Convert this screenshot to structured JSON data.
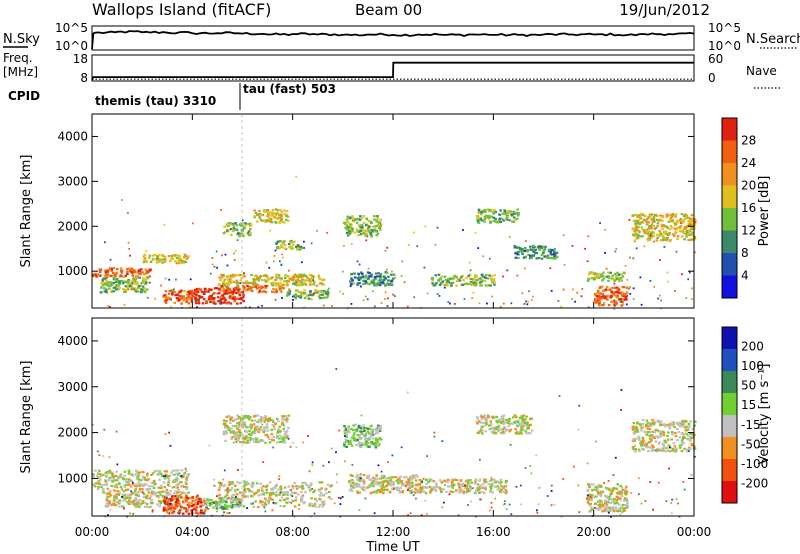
{
  "header": {
    "title": "Wallops Island (fitACF)",
    "beam": "Beam 00",
    "date": "19/Jun/2012"
  },
  "noise_panel": {
    "left_label": "N.Sky",
    "right_label": "N.Search",
    "left_tick_top": "10^5",
    "left_tick_bottom": "10^0",
    "right_tick_top": "10^5",
    "right_tick_bottom": "10^0"
  },
  "freq_panel": {
    "left_label_1": "Freq.",
    "left_label_2": "[MHz]",
    "right_label": "Nave",
    "left_tick_top": "18",
    "left_tick_bottom": "8",
    "right_tick_top": "60",
    "right_tick_bottom": "0"
  },
  "cpid": {
    "label": "CPID",
    "programs": [
      {
        "name": "themis (tau) 3310",
        "start_hour": 0
      },
      {
        "name": "tau (fast) 503",
        "start_hour": 6
      }
    ]
  },
  "power_panel": {
    "ylabel": "Slant Range [km]",
    "colorbar_label": "Power [dB]",
    "colorbar_ticks": [
      "28",
      "24",
      "20",
      "16",
      "12",
      "8",
      "4"
    ]
  },
  "velocity_panel": {
    "ylabel": "Slant Range [km]",
    "colorbar_label": "Velocity [m s⁻¹]",
    "colorbar_ticks": [
      "200",
      "100",
      "50",
      "15",
      "-15",
      "-50",
      "-100",
      "-200"
    ]
  },
  "x_axis": {
    "label": "Time UT",
    "ticks": [
      "00:00",
      "04:00",
      "08:00",
      "12:00",
      "16:00",
      "20:00",
      "00:00"
    ]
  },
  "colors": {
    "power_scale": [
      "#1010e0",
      "#2050b0",
      "#3a8a6a",
      "#6fbf3a",
      "#e0c020",
      "#f09020",
      "#f06010",
      "#e02010"
    ],
    "velocity_scale": [
      "#e01010",
      "#f05010",
      "#f09020",
      "#c0c0c0",
      "#70d030",
      "#3a8a5a",
      "#2050c0",
      "#1010b0"
    ]
  },
  "chart_data": [
    {
      "type": "line",
      "name": "noise",
      "x_hours": [
        0,
        0.05,
        0.1,
        1,
        2,
        3,
        4,
        5,
        6,
        7,
        8,
        9,
        10,
        11,
        12,
        13,
        14,
        15,
        16,
        17,
        18,
        19,
        20,
        21,
        22,
        23,
        24
      ],
      "y_log": [
        0,
        3.5,
        3.7,
        3.9,
        3.8,
        3.7,
        3.6,
        3.6,
        3.5,
        3.3,
        3.4,
        3.3,
        3.2,
        3.3,
        3.2,
        3.3,
        3.2,
        3.3,
        3.2,
        3.2,
        3.3,
        3.3,
        3.3,
        3.2,
        3.4,
        3.4,
        3.5
      ],
      "ylim": [
        0,
        5
      ]
    },
    {
      "type": "line",
      "name": "frequency_and_nave",
      "freq_hours": [
        0,
        0.05,
        12,
        12.01,
        24
      ],
      "freq_mhz": [
        8,
        9.2,
        9.2,
        15.2,
        15.2
      ],
      "nave_dotted": 2,
      "freq_ylim": [
        8,
        18
      ],
      "nave_ylim": [
        0,
        60
      ]
    },
    {
      "type": "heatmap",
      "name": "power",
      "xlim_hours": [
        0,
        24
      ],
      "ylim_km": [
        180,
        4500
      ],
      "clim_db": [
        0,
        30
      ],
      "features": [
        {
          "t0": 0.0,
          "t1": 2.3,
          "r0": 900,
          "r1": 1100,
          "level": 6
        },
        {
          "t0": 2.0,
          "t1": 3.8,
          "r0": 1200,
          "r1": 1400,
          "level": 4
        },
        {
          "t0": 0.3,
          "t1": 2.2,
          "r0": 550,
          "r1": 900,
          "level": 3
        },
        {
          "t0": 2.8,
          "t1": 4.0,
          "r0": 300,
          "r1": 600,
          "level": 6
        },
        {
          "t0": 3.8,
          "t1": 6.0,
          "r0": 300,
          "r1": 650,
          "level": 7
        },
        {
          "t0": 5.0,
          "t1": 7.6,
          "r0": 550,
          "r1": 700,
          "level": 6
        },
        {
          "t0": 5.0,
          "t1": 9.2,
          "r0": 700,
          "r1": 950,
          "level": 4
        },
        {
          "t0": 7.6,
          "t1": 9.4,
          "r0": 400,
          "r1": 600,
          "level": 3
        },
        {
          "t0": 5.2,
          "t1": 6.3,
          "r0": 1800,
          "r1": 2100,
          "level": 3
        },
        {
          "t0": 6.4,
          "t1": 7.8,
          "r0": 2100,
          "r1": 2400,
          "level": 4
        },
        {
          "t0": 7.3,
          "t1": 8.4,
          "r0": 1500,
          "r1": 1700,
          "level": 3
        },
        {
          "t0": 10.0,
          "t1": 11.5,
          "r0": 1800,
          "r1": 2250,
          "level": 3
        },
        {
          "t0": 10.2,
          "t1": 12.0,
          "r0": 700,
          "r1": 1000,
          "level": 2
        },
        {
          "t0": 13.5,
          "t1": 16.0,
          "r0": 700,
          "r1": 950,
          "level": 3
        },
        {
          "t0": 15.3,
          "t1": 17.0,
          "r0": 2100,
          "r1": 2400,
          "level": 3
        },
        {
          "t0": 16.8,
          "t1": 18.5,
          "r0": 1300,
          "r1": 1600,
          "level": 2
        },
        {
          "t0": 19.7,
          "t1": 21.2,
          "r0": 800,
          "r1": 1000,
          "level": 3
        },
        {
          "t0": 20.0,
          "t1": 21.3,
          "r0": 250,
          "r1": 700,
          "level": 6
        },
        {
          "t0": 21.5,
          "t1": 24.0,
          "r0": 1700,
          "r1": 2300,
          "level": 4
        },
        {
          "t0": 23.3,
          "t1": 24.0,
          "r0": 2000,
          "r1": 2200,
          "level": 5
        }
      ]
    },
    {
      "type": "heatmap",
      "name": "velocity",
      "xlim_hours": [
        0,
        24
      ],
      "ylim_km": [
        180,
        4500
      ],
      "clim_ms": [
        -250,
        250
      ],
      "features": [
        {
          "t0": 0.0,
          "t1": 3.8,
          "r0": 700,
          "r1": 1200,
          "level": 3
        },
        {
          "t0": 0.5,
          "t1": 3.5,
          "r0": 400,
          "r1": 700,
          "level": 3
        },
        {
          "t0": 2.8,
          "t1": 4.5,
          "r0": 250,
          "r1": 650,
          "level": 1
        },
        {
          "t0": 4.4,
          "t1": 5.9,
          "r0": 350,
          "r1": 600,
          "level": 4
        },
        {
          "t0": 5.0,
          "t1": 9.5,
          "r0": 400,
          "r1": 950,
          "level": 3
        },
        {
          "t0": 5.2,
          "t1": 7.8,
          "r0": 1800,
          "r1": 2400,
          "level": 3
        },
        {
          "t0": 10.0,
          "t1": 11.5,
          "r0": 1700,
          "r1": 2200,
          "level": 4
        },
        {
          "t0": 10.2,
          "t1": 13.0,
          "r0": 700,
          "r1": 1100,
          "level": 3
        },
        {
          "t0": 13.0,
          "t1": 16.5,
          "r0": 700,
          "r1": 1000,
          "level": 3
        },
        {
          "t0": 15.3,
          "t1": 17.5,
          "r0": 2000,
          "r1": 2400,
          "level": 3
        },
        {
          "t0": 19.7,
          "t1": 21.3,
          "r0": 300,
          "r1": 900,
          "level": 3
        },
        {
          "t0": 21.5,
          "t1": 24.0,
          "r0": 1600,
          "r1": 2300,
          "level": 3
        }
      ]
    }
  ]
}
